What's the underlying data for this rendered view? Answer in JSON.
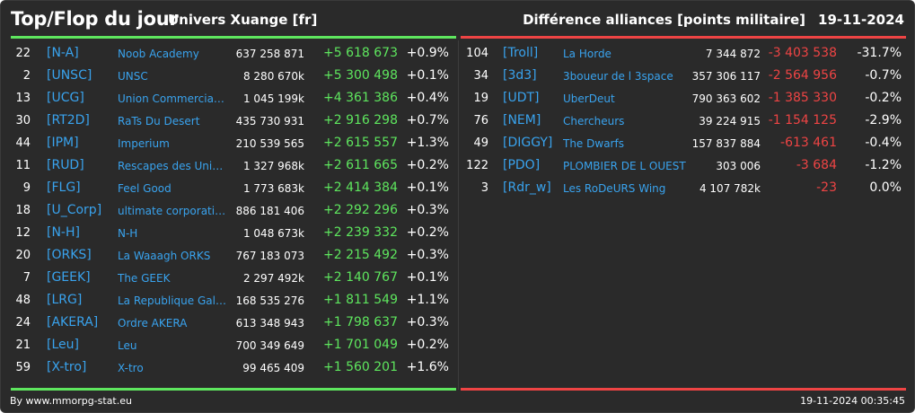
{
  "header": {
    "title": "Top/Flop du jour",
    "universe": "Univers Xuange [fr]",
    "ranking": "Différence alliances [points militaire]",
    "date": "19-11-2024"
  },
  "colors": {
    "top": "#5ee65e",
    "flop": "#ee4444",
    "tag": "#39a3ee",
    "background": "#2a2a2a"
  },
  "top": [
    {
      "rank": "22",
      "tag": "[N-A]",
      "name": "Noob Academy",
      "points": "637 258 871",
      "diff": "+5 618 673",
      "pct": "+0.9%"
    },
    {
      "rank": "2",
      "tag": "[UNSC]",
      "name": "UNSC",
      "points": "8 280 670k",
      "diff": "+5 300 498",
      "pct": "+0.1%"
    },
    {
      "rank": "13",
      "tag": "[UCG]",
      "name": "Union Commerciale...",
      "points": "1 045 199k",
      "diff": "+4 361 386",
      "pct": "+0.4%"
    },
    {
      "rank": "30",
      "tag": "[RT2D]",
      "name": "RaTs Du Desert",
      "points": "435 730 931",
      "diff": "+2 916 298",
      "pct": "+0.7%"
    },
    {
      "rank": "44",
      "tag": "[IPM]",
      "name": "Imperium",
      "points": "210 539 565",
      "diff": "+2 615 557",
      "pct": "+1.3%"
    },
    {
      "rank": "11",
      "tag": "[RUD]",
      "name": "Rescapes des Univ...",
      "points": "1 327 968k",
      "diff": "+2 611 665",
      "pct": "+0.2%"
    },
    {
      "rank": "9",
      "tag": "[FLG]",
      "name": "Feel Good",
      "points": "1 773 683k",
      "diff": "+2 414 384",
      "pct": "+0.1%"
    },
    {
      "rank": "18",
      "tag": "[U_Corp]",
      "name": "ultimate corporation",
      "points": "886 181 406",
      "diff": "+2 292 296",
      "pct": "+0.3%"
    },
    {
      "rank": "12",
      "tag": "[N-H]",
      "name": "N-H",
      "points": "1 048 673k",
      "diff": "+2 239 332",
      "pct": "+0.2%"
    },
    {
      "rank": "20",
      "tag": "[ORKS]",
      "name": "La Waaagh ORKS",
      "points": "767 183 073",
      "diff": "+2 215 492",
      "pct": "+0.3%"
    },
    {
      "rank": "7",
      "tag": "[GEEK]",
      "name": "The GEEK",
      "points": "2 297 492k",
      "diff": "+2 140 767",
      "pct": "+0.1%"
    },
    {
      "rank": "48",
      "tag": "[LRG]",
      "name": "La Republique Gala...",
      "points": "168 535 276",
      "diff": "+1 811 549",
      "pct": "+1.1%"
    },
    {
      "rank": "24",
      "tag": "[AKERA]",
      "name": "Ordre AKERA",
      "points": "613 348 943",
      "diff": "+1 798 637",
      "pct": "+0.3%"
    },
    {
      "rank": "21",
      "tag": "[Leu]",
      "name": "Leu",
      "points": "700 349 649",
      "diff": "+1 701 049",
      "pct": "+0.2%"
    },
    {
      "rank": "59",
      "tag": "[X-tro]",
      "name": "X-tro",
      "points": "99 465 409",
      "diff": "+1 560 201",
      "pct": "+1.6%"
    }
  ],
  "flop": [
    {
      "rank": "104",
      "tag": "[Troll]",
      "name": "La Horde",
      "points": "7 344 872",
      "diff": "-3 403 538",
      "pct": "-31.7%"
    },
    {
      "rank": "34",
      "tag": "[3d3]",
      "name": "3boueur de l 3space",
      "points": "357 306 117",
      "diff": "-2 564 956",
      "pct": "-0.7%"
    },
    {
      "rank": "19",
      "tag": "[UDT]",
      "name": "UberDeut",
      "points": "790 363 602",
      "diff": "-1 385 330",
      "pct": "-0.2%"
    },
    {
      "rank": "76",
      "tag": "[NEM]",
      "name": "Chercheurs",
      "points": "39 224 915",
      "diff": "-1 154 125",
      "pct": "-2.9%"
    },
    {
      "rank": "49",
      "tag": "[DIGGY]",
      "name": "The Dwarfs",
      "points": "157 837 884",
      "diff": "-613 461",
      "pct": "-0.4%"
    },
    {
      "rank": "122",
      "tag": "[PDO]",
      "name": "PLOMBIER DE L OUEST",
      "points": "303 006",
      "diff": "-3 684",
      "pct": "-1.2%"
    },
    {
      "rank": "3",
      "tag": "[Rdr_w]",
      "name": "Les RoDeURS Wing",
      "points": "4 107 782k",
      "diff": "-23",
      "pct": "0.0%"
    }
  ],
  "footer": {
    "credit": "By www.mmorpg-stat.eu",
    "timestamp": "19-11-2024 00:35:45"
  }
}
